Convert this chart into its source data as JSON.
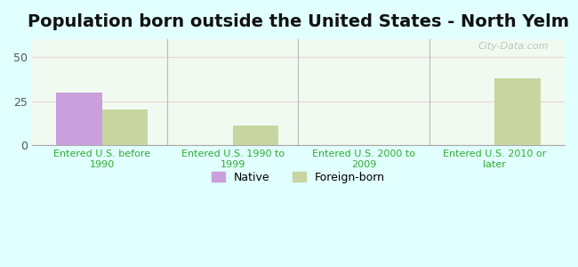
{
  "title": "Population born outside the United States - North Yelm",
  "categories": [
    "Entered U.S. before\n1990",
    "Entered U.S. 1990 to\n1999",
    "Entered U.S. 2000 to\n2009",
    "Entered U.S. 2010 or\nlater"
  ],
  "native_values": [
    30,
    0,
    0,
    0
  ],
  "foreign_values": [
    20,
    11,
    0,
    38
  ],
  "native_color": "#c9a0dc",
  "foreign_color": "#c8d5a0",
  "bar_width": 0.35,
  "ylim": [
    0,
    60
  ],
  "yticks": [
    0,
    25,
    50
  ],
  "background_color": "#e0fffe",
  "plot_bg_color": "#f0faf0",
  "grid_color": "#e8d8d8",
  "title_fontsize": 14,
  "tick_label_fontsize": 8,
  "legend_labels": [
    "Native",
    "Foreign-born"
  ],
  "watermark": "City-Data.com"
}
